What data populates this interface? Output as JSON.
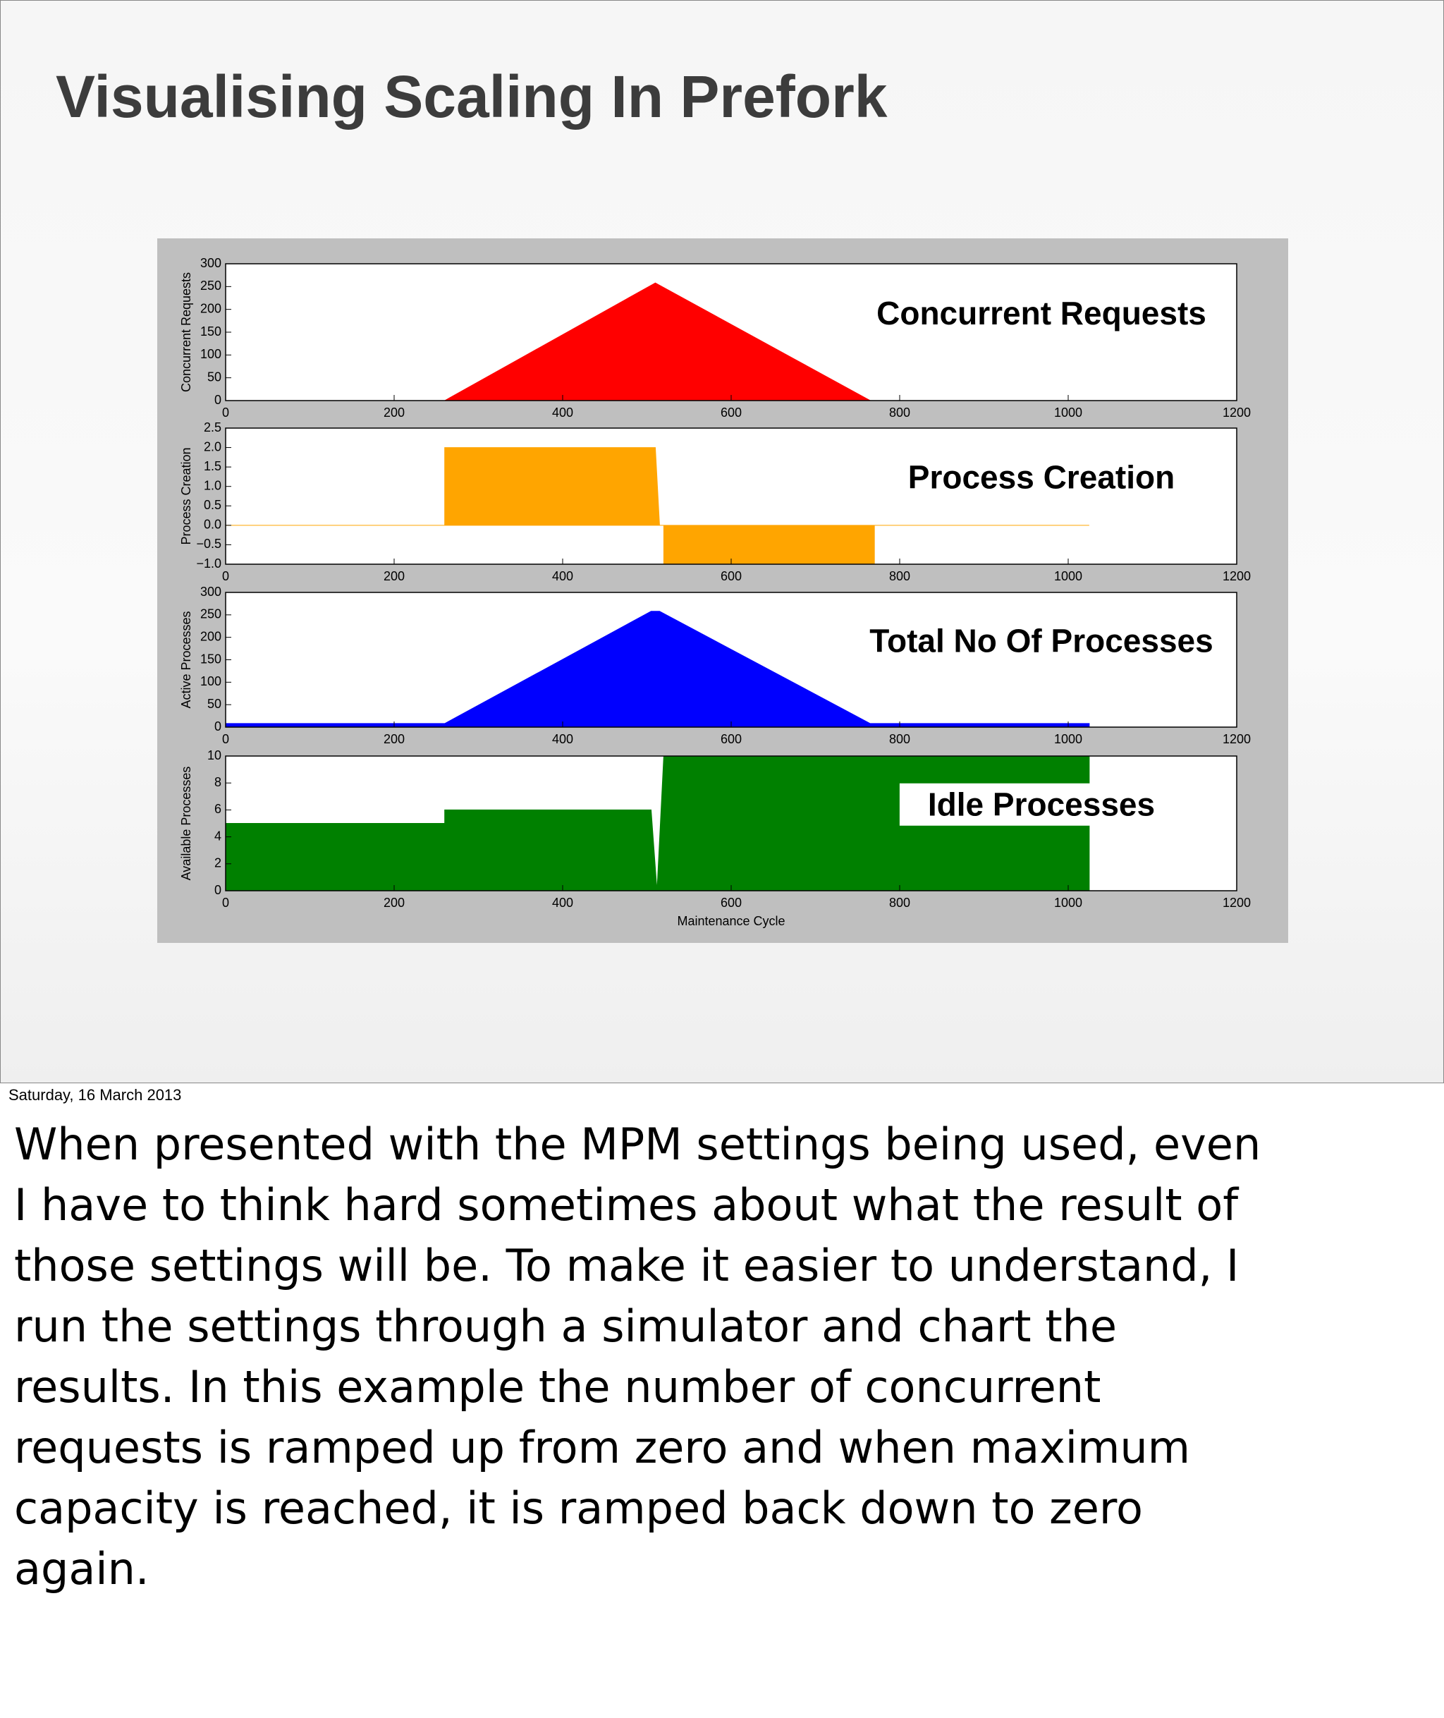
{
  "title": "Visualising Scaling In Prefork",
  "date": "Saturday, 16 March 2013",
  "notes": [
    "When presented with the MPM settings being used, even",
    "I have to think hard sometimes about what the result of",
    "those settings will be. To make it easier to understand, I",
    "run the settings through a simulator and chart the",
    "results. In this example the number of concurrent",
    "requests is ramped up from zero and when maximum",
    "capacity is reached, it is ramped back down to zero",
    "again."
  ],
  "chart_data": [
    {
      "type": "area",
      "annotation": "Concurrent Requests",
      "ylabel": "Concurrent Requests",
      "color": "#ff0000",
      "x": [
        0,
        260,
        510,
        765,
        1025
      ],
      "values": [
        0,
        0,
        258,
        0,
        0
      ],
      "xlim": [
        0,
        1200
      ],
      "xticks": [
        0,
        200,
        400,
        600,
        800,
        1000,
        1200
      ],
      "ylim": [
        0,
        300
      ],
      "yticks": [
        0,
        50,
        100,
        150,
        200,
        250,
        300
      ]
    },
    {
      "type": "area",
      "annotation": "Process Creation",
      "ylabel": "Process Creation",
      "color": "#ffa500",
      "x": [
        0,
        260,
        260,
        510,
        515,
        520,
        520,
        770,
        770,
        1025
      ],
      "values": [
        0,
        0,
        2,
        2,
        0,
        0,
        -1,
        -1,
        0,
        0
      ],
      "xlim": [
        0,
        1200
      ],
      "xticks": [
        0,
        200,
        400,
        600,
        800,
        1000,
        1200
      ],
      "ylim": [
        -1,
        2.5
      ],
      "yticks": [
        {
          "value": -1,
          "label": "−1.0"
        },
        {
          "value": -0.5,
          "label": "−0.5"
        },
        {
          "value": 0,
          "label": "0.0"
        },
        0.5,
        {
          "value": 1,
          "label": "1.0"
        },
        1.5,
        {
          "value": 2,
          "label": "2.0"
        },
        2.5
      ]
    },
    {
      "type": "area",
      "annotation": "Total No Of Processes",
      "ylabel": "Active Processes",
      "color": "#0000ff",
      "x": [
        0,
        260,
        505,
        515,
        765,
        1025
      ],
      "values": [
        8,
        8,
        258,
        258,
        8,
        8
      ],
      "xlim": [
        0,
        1200
      ],
      "xticks": [
        0,
        200,
        400,
        600,
        800,
        1000,
        1200
      ],
      "ylim": [
        0,
        300
      ],
      "yticks": [
        0,
        50,
        100,
        150,
        200,
        250,
        300
      ]
    },
    {
      "type": "area",
      "annotation": "Idle Processes",
      "ylabel": "Available Processes",
      "xlabel": "Maintenance Cycle",
      "color": "#008000",
      "x": [
        0,
        260,
        260,
        505,
        512,
        520,
        1025,
        1025
      ],
      "values": [
        5,
        5,
        6,
        6,
        0,
        10,
        10,
        0
      ],
      "xlim": [
        0,
        1200
      ],
      "xticks": [
        0,
        200,
        400,
        600,
        800,
        1000,
        1200
      ],
      "ylim": [
        0,
        10
      ],
      "yticks": [
        0,
        2,
        4,
        6,
        8,
        10
      ]
    }
  ]
}
